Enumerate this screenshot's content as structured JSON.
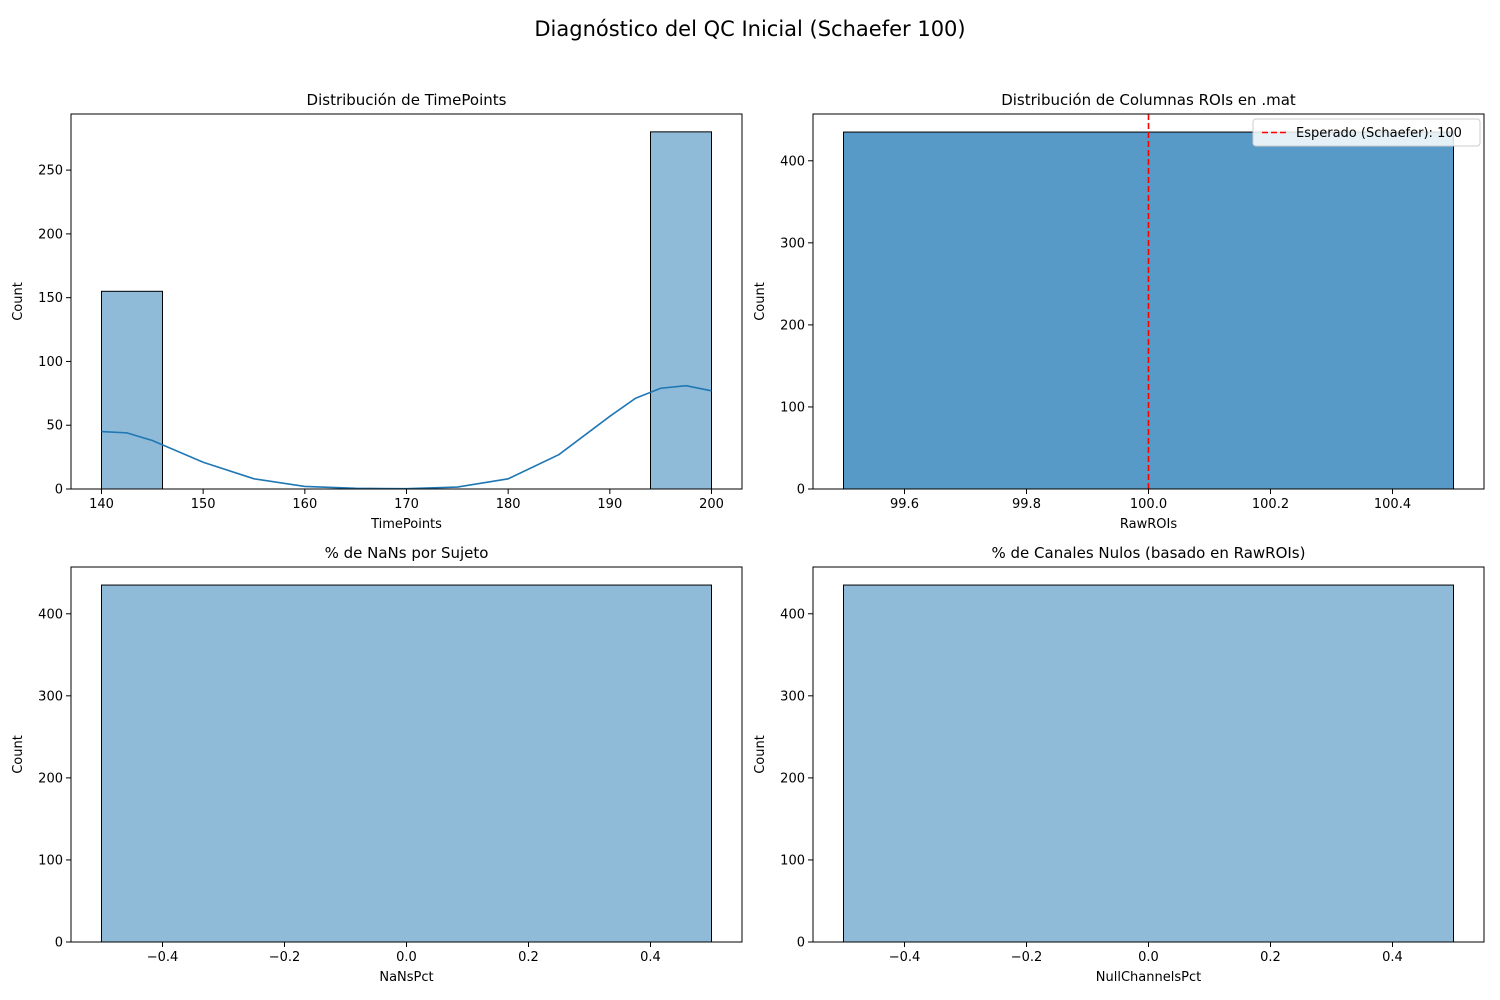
{
  "suptitle": "Diagnóstico del QC Inicial (Schaefer 100)",
  "colors": {
    "hist_fill": "#1f77b4",
    "hist_edge": "#000000",
    "kde_line": "#1f77b4",
    "ref_line": "#ff0000"
  },
  "chart_data": [
    {
      "type": "bar",
      "title": "Distribución de TimePoints",
      "xlabel": "TimePoints",
      "ylabel": "Count",
      "xlim": [
        137,
        203
      ],
      "ylim": [
        0,
        294
      ],
      "xticks": [
        140,
        150,
        160,
        170,
        180,
        190,
        200
      ],
      "yticks": [
        0,
        50,
        100,
        150,
        200,
        250
      ],
      "bar_alpha": 0.5,
      "bins": [
        {
          "x0": 140,
          "x1": 146,
          "count": 155
        },
        {
          "x0": 194,
          "x1": 200,
          "count": 280
        }
      ],
      "kde": {
        "x": [
          140,
          142.5,
          145,
          150,
          155,
          160,
          165,
          170,
          175,
          180,
          185,
          190,
          192.5,
          195,
          197.5,
          200
        ],
        "y": [
          45,
          44,
          38,
          21,
          8,
          2,
          0.5,
          0.3,
          1.5,
          8,
          27,
          57,
          71,
          79,
          81,
          77
        ]
      }
    },
    {
      "type": "bar",
      "title": "Distribución de Columnas ROIs en .mat",
      "xlabel": "RawROIs",
      "ylabel": "Count",
      "xlim": [
        99.45,
        100.55
      ],
      "ylim": [
        0,
        457
      ],
      "xticks": [
        99.6,
        99.8,
        100.0,
        100.2,
        100.4
      ],
      "xtick_labels": [
        "99.6",
        "99.8",
        "100.0",
        "100.2",
        "100.4"
      ],
      "yticks": [
        0,
        100,
        200,
        300,
        400
      ],
      "bar_alpha": 0.75,
      "bins": [
        {
          "x0": 99.5,
          "x1": 100.5,
          "count": 435
        }
      ],
      "ref_line": {
        "x": 100,
        "label": "Esperado (Schaefer): 100"
      },
      "legend": "top-right"
    },
    {
      "type": "bar",
      "title": "% de NaNs por Sujeto",
      "xlabel": "NaNsPct",
      "ylabel": "Count",
      "xlim": [
        -0.55,
        0.55
      ],
      "ylim": [
        0,
        457
      ],
      "xticks": [
        -0.4,
        -0.2,
        0.0,
        0.2,
        0.4
      ],
      "xtick_labels": [
        "−0.4",
        "−0.2",
        "0.0",
        "0.2",
        "0.4"
      ],
      "yticks": [
        0,
        100,
        200,
        300,
        400
      ],
      "bar_alpha": 0.5,
      "bins": [
        {
          "x0": -0.5,
          "x1": 0.5,
          "count": 435
        }
      ]
    },
    {
      "type": "bar",
      "title": "% de Canales Nulos (basado en RawROIs)",
      "xlabel": "NullChannelsPct",
      "ylabel": "Count",
      "xlim": [
        -0.55,
        0.55
      ],
      "ylim": [
        0,
        457
      ],
      "xticks": [
        -0.4,
        -0.2,
        0.0,
        0.2,
        0.4
      ],
      "xtick_labels": [
        "−0.4",
        "−0.2",
        "0.0",
        "0.2",
        "0.4"
      ],
      "yticks": [
        0,
        100,
        200,
        300,
        400
      ],
      "bar_alpha": 0.5,
      "bins": [
        {
          "x0": -0.5,
          "x1": 0.5,
          "count": 435
        }
      ]
    }
  ]
}
